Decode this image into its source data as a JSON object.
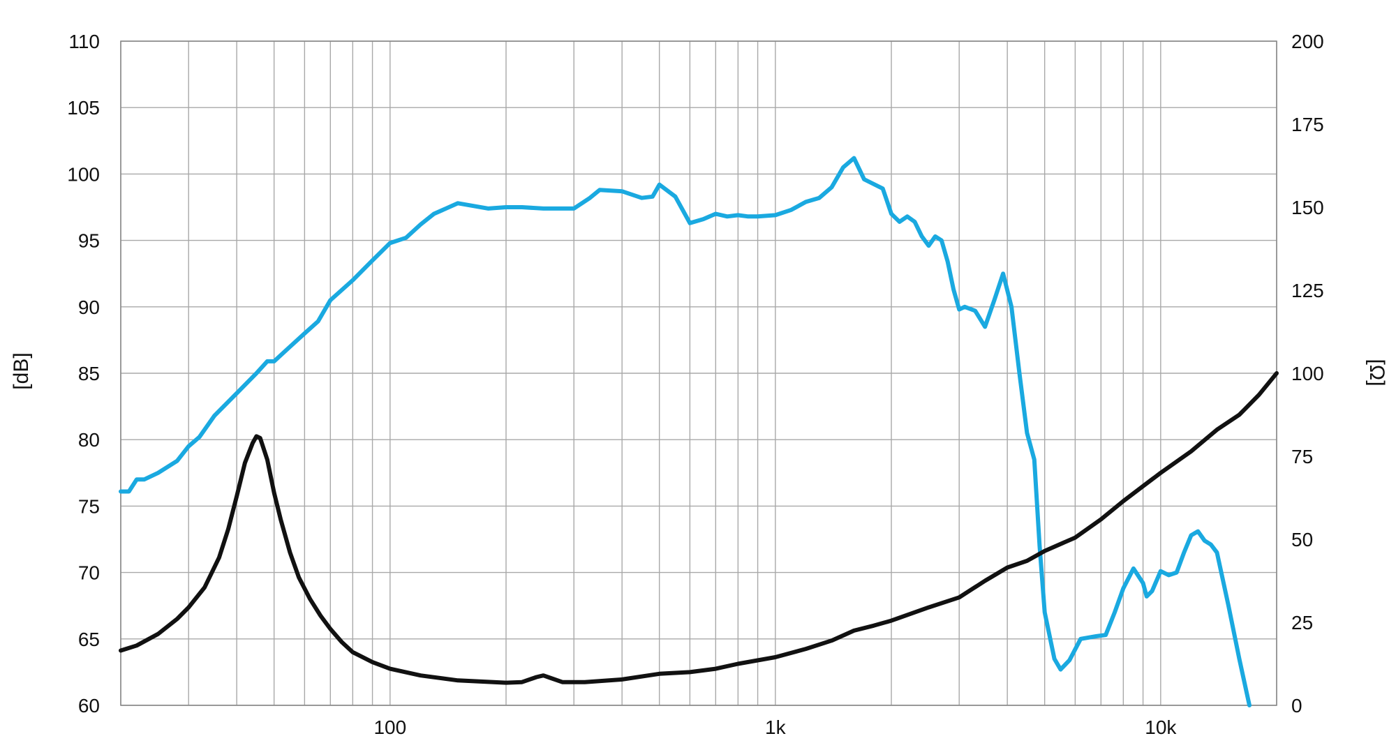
{
  "chart_data": {
    "type": "line",
    "title": "",
    "xlabel": "",
    "ylabel": "[dB]",
    "y2label": "[Ω]",
    "x_scale": "log",
    "xlim": [
      20,
      20000
    ],
    "ylim": [
      60,
      110
    ],
    "y2lim": [
      0,
      200
    ],
    "grid": true,
    "x_tick_labels": [
      {
        "value": 100,
        "label": "100"
      },
      {
        "value": 1000,
        "label": "1k"
      },
      {
        "value": 10000,
        "label": "10k"
      }
    ],
    "y_ticks": [
      60,
      65,
      70,
      75,
      80,
      85,
      90,
      95,
      100,
      105,
      110
    ],
    "y2_ticks": [
      0,
      25,
      50,
      75,
      100,
      125,
      150,
      175,
      200
    ],
    "series": [
      {
        "axis": "left",
        "color": "#1aa9e0",
        "points": [
          [
            20,
            76.1
          ],
          [
            21,
            76.1
          ],
          [
            22,
            77.0
          ],
          [
            23,
            77.0
          ],
          [
            25,
            77.5
          ],
          [
            28,
            78.4
          ],
          [
            30,
            79.5
          ],
          [
            32,
            80.2
          ],
          [
            35,
            81.8
          ],
          [
            40,
            83.5
          ],
          [
            45,
            85.0
          ],
          [
            48,
            85.9
          ],
          [
            50,
            85.9
          ],
          [
            55,
            87.0
          ],
          [
            60,
            88.0
          ],
          [
            65,
            88.9
          ],
          [
            70,
            90.5
          ],
          [
            80,
            92.0
          ],
          [
            90,
            93.5
          ],
          [
            100,
            94.8
          ],
          [
            110,
            95.2
          ],
          [
            120,
            96.2
          ],
          [
            130,
            97.0
          ],
          [
            150,
            97.8
          ],
          [
            180,
            97.4
          ],
          [
            200,
            97.5
          ],
          [
            220,
            97.5
          ],
          [
            250,
            97.4
          ],
          [
            300,
            97.4
          ],
          [
            330,
            98.2
          ],
          [
            350,
            98.8
          ],
          [
            400,
            98.7
          ],
          [
            450,
            98.2
          ],
          [
            480,
            98.3
          ],
          [
            500,
            99.2
          ],
          [
            550,
            98.3
          ],
          [
            600,
            96.3
          ],
          [
            650,
            96.6
          ],
          [
            700,
            97.0
          ],
          [
            750,
            96.8
          ],
          [
            800,
            96.9
          ],
          [
            850,
            96.8
          ],
          [
            900,
            96.8
          ],
          [
            1000,
            96.9
          ],
          [
            1100,
            97.3
          ],
          [
            1200,
            97.9
          ],
          [
            1300,
            98.2
          ],
          [
            1400,
            99.0
          ],
          [
            1500,
            100.5
          ],
          [
            1600,
            101.2
          ],
          [
            1700,
            99.6
          ],
          [
            1900,
            98.9
          ],
          [
            2000,
            97.0
          ],
          [
            2100,
            96.4
          ],
          [
            2200,
            96.8
          ],
          [
            2300,
            96.4
          ],
          [
            2400,
            95.3
          ],
          [
            2500,
            94.6
          ],
          [
            2600,
            95.3
          ],
          [
            2700,
            95.0
          ],
          [
            2800,
            93.4
          ],
          [
            2900,
            91.3
          ],
          [
            3000,
            89.8
          ],
          [
            3100,
            90.0
          ],
          [
            3300,
            89.7
          ],
          [
            3500,
            88.5
          ],
          [
            3700,
            90.5
          ],
          [
            3900,
            92.5
          ],
          [
            4100,
            90.0
          ],
          [
            4300,
            85.0
          ],
          [
            4500,
            80.5
          ],
          [
            4700,
            78.5
          ],
          [
            4850,
            72.0
          ],
          [
            5000,
            67.0
          ],
          [
            5300,
            63.5
          ],
          [
            5500,
            62.7
          ],
          [
            5800,
            63.4
          ],
          [
            6200,
            65.0
          ],
          [
            6800,
            65.2
          ],
          [
            7200,
            65.3
          ],
          [
            7600,
            67.0
          ],
          [
            8000,
            68.8
          ],
          [
            8500,
            70.3
          ],
          [
            9000,
            69.2
          ],
          [
            9200,
            68.2
          ],
          [
            9500,
            68.6
          ],
          [
            10000,
            70.1
          ],
          [
            10500,
            69.8
          ],
          [
            11000,
            70.0
          ],
          [
            11500,
            71.5
          ],
          [
            12000,
            72.8
          ],
          [
            12500,
            73.1
          ],
          [
            13000,
            72.4
          ],
          [
            13500,
            72.1
          ],
          [
            14000,
            71.5
          ],
          [
            15000,
            67.5
          ],
          [
            16000,
            63.5
          ],
          [
            17000,
            60.0
          ]
        ]
      },
      {
        "axis": "right",
        "color": "#111111",
        "points": [
          [
            20,
            16.5
          ],
          [
            22,
            18.0
          ],
          [
            25,
            21.5
          ],
          [
            28,
            26.0
          ],
          [
            30,
            29.5
          ],
          [
            33,
            35.5
          ],
          [
            36,
            44.5
          ],
          [
            38,
            53.0
          ],
          [
            40,
            63.0
          ],
          [
            42,
            73.0
          ],
          [
            44,
            79.0
          ],
          [
            45,
            81.0
          ],
          [
            46,
            80.5
          ],
          [
            48,
            74.0
          ],
          [
            50,
            64.0
          ],
          [
            52,
            56.0
          ],
          [
            55,
            46.0
          ],
          [
            58,
            38.5
          ],
          [
            62,
            32.0
          ],
          [
            66,
            27.0
          ],
          [
            70,
            23.0
          ],
          [
            75,
            19.0
          ],
          [
            80,
            16.0
          ],
          [
            90,
            13.0
          ],
          [
            100,
            11.0
          ],
          [
            120,
            9.0
          ],
          [
            150,
            7.5
          ],
          [
            200,
            6.8
          ],
          [
            220,
            7.0
          ],
          [
            240,
            8.5
          ],
          [
            250,
            9.0
          ],
          [
            260,
            8.3
          ],
          [
            280,
            7.0
          ],
          [
            320,
            7.0
          ],
          [
            400,
            7.8
          ],
          [
            500,
            9.5
          ],
          [
            600,
            10.0
          ],
          [
            700,
            11.0
          ],
          [
            800,
            12.5
          ],
          [
            1000,
            14.5
          ],
          [
            1200,
            17.0
          ],
          [
            1400,
            19.5
          ],
          [
            1600,
            22.5
          ],
          [
            1800,
            24.0
          ],
          [
            2000,
            25.5
          ],
          [
            2500,
            29.5
          ],
          [
            3000,
            32.5
          ],
          [
            3500,
            37.5
          ],
          [
            4000,
            41.5
          ],
          [
            4500,
            43.5
          ],
          [
            5000,
            46.5
          ],
          [
            6000,
            50.5
          ],
          [
            7000,
            56.0
          ],
          [
            8000,
            61.5
          ],
          [
            9000,
            66.0
          ],
          [
            10000,
            70.0
          ],
          [
            12000,
            76.5
          ],
          [
            14000,
            83.0
          ],
          [
            16000,
            87.5
          ],
          [
            18000,
            93.5
          ],
          [
            20000,
            100.0
          ]
        ]
      }
    ]
  }
}
